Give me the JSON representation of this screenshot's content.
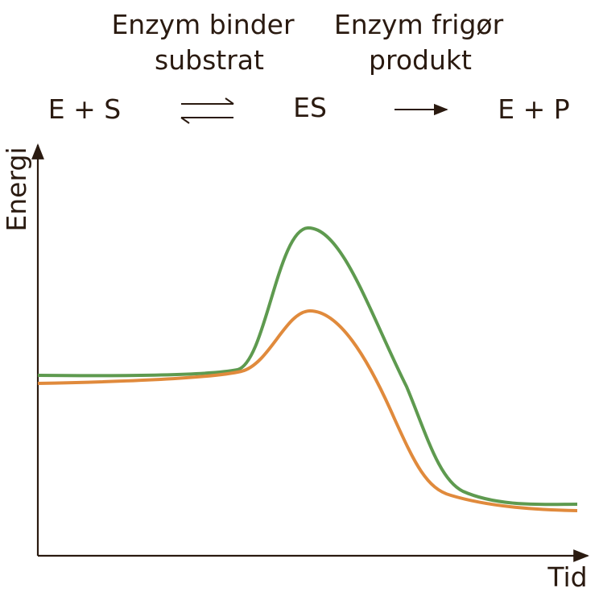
{
  "steps": [
    {
      "label_lines": [
        "Enzym binder",
        "substrat"
      ]
    },
    {
      "label_lines": [
        "Enzym frigør",
        "produkt"
      ]
    }
  ],
  "states": [
    "E + S",
    "ES",
    "E + P"
  ],
  "axes": {
    "y_label": "Energi",
    "x_label": "Tid"
  }
}
